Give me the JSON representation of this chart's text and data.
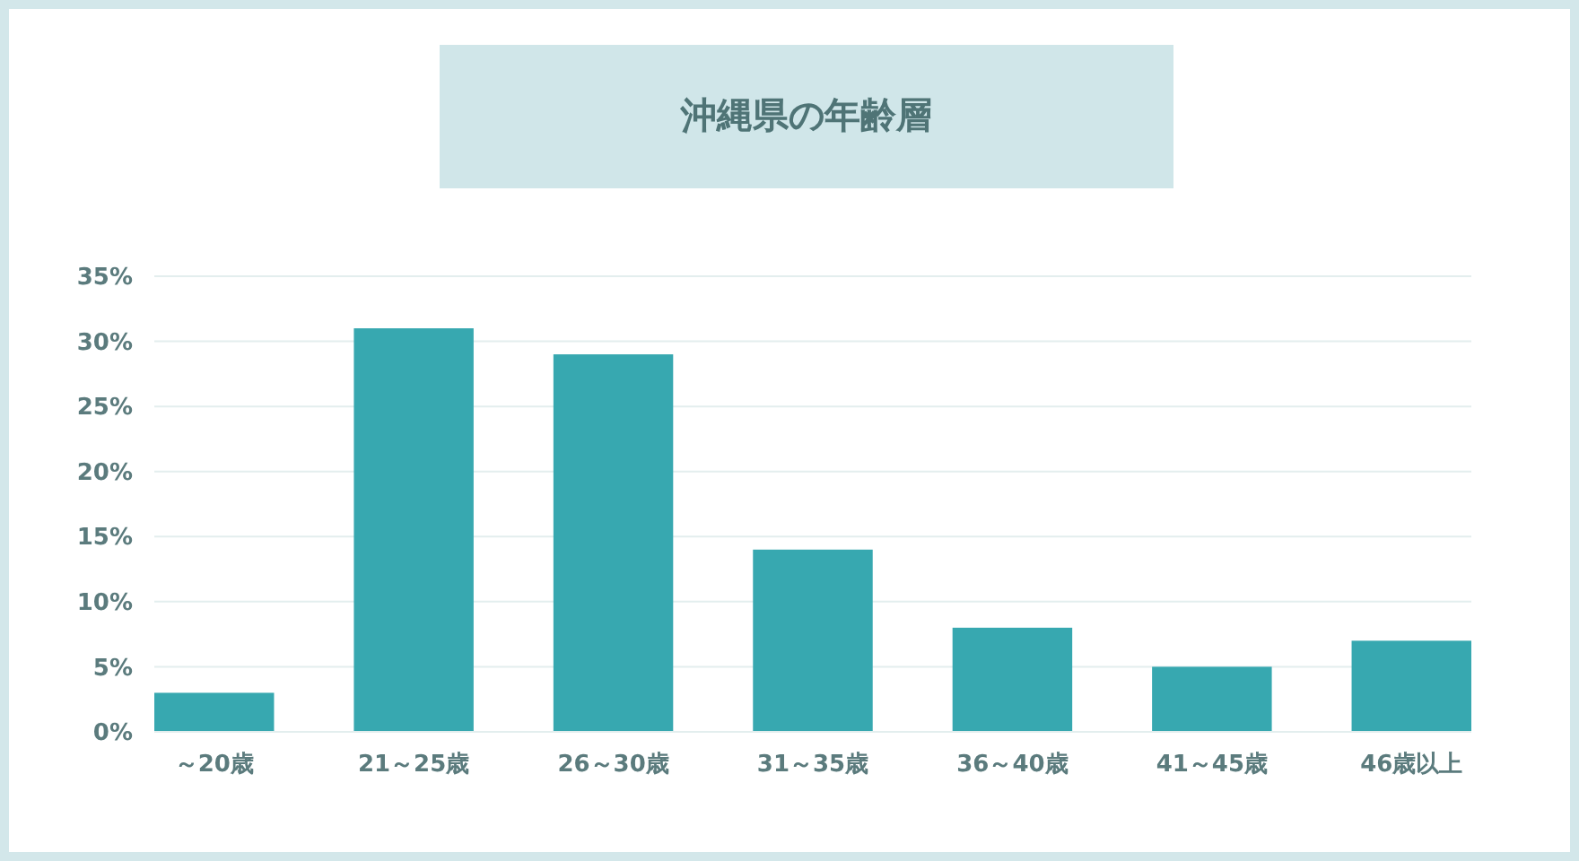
{
  "chart_data": {
    "type": "bar",
    "title": "沖縄県の年齢層",
    "categories": [
      "～20歳",
      "21～25歳",
      "26～30歳",
      "31～35歳",
      "36～40歳",
      "41～45歳",
      "46歳以上"
    ],
    "values": [
      3,
      31,
      29,
      14,
      8,
      5,
      7
    ],
    "color": "#37a8b0",
    "ylim": [
      0,
      35
    ],
    "yticks": [
      {
        "value": 0,
        "label": "0%"
      },
      {
        "value": 5,
        "label": "5%"
      },
      {
        "value": 10,
        "label": "10%"
      },
      {
        "value": 15,
        "label": "15%"
      },
      {
        "value": 20,
        "label": "20%"
      },
      {
        "value": 25,
        "label": "25%"
      },
      {
        "value": 30,
        "label": "30%"
      },
      {
        "value": 35,
        "label": "35%"
      }
    ],
    "grid": "y"
  }
}
